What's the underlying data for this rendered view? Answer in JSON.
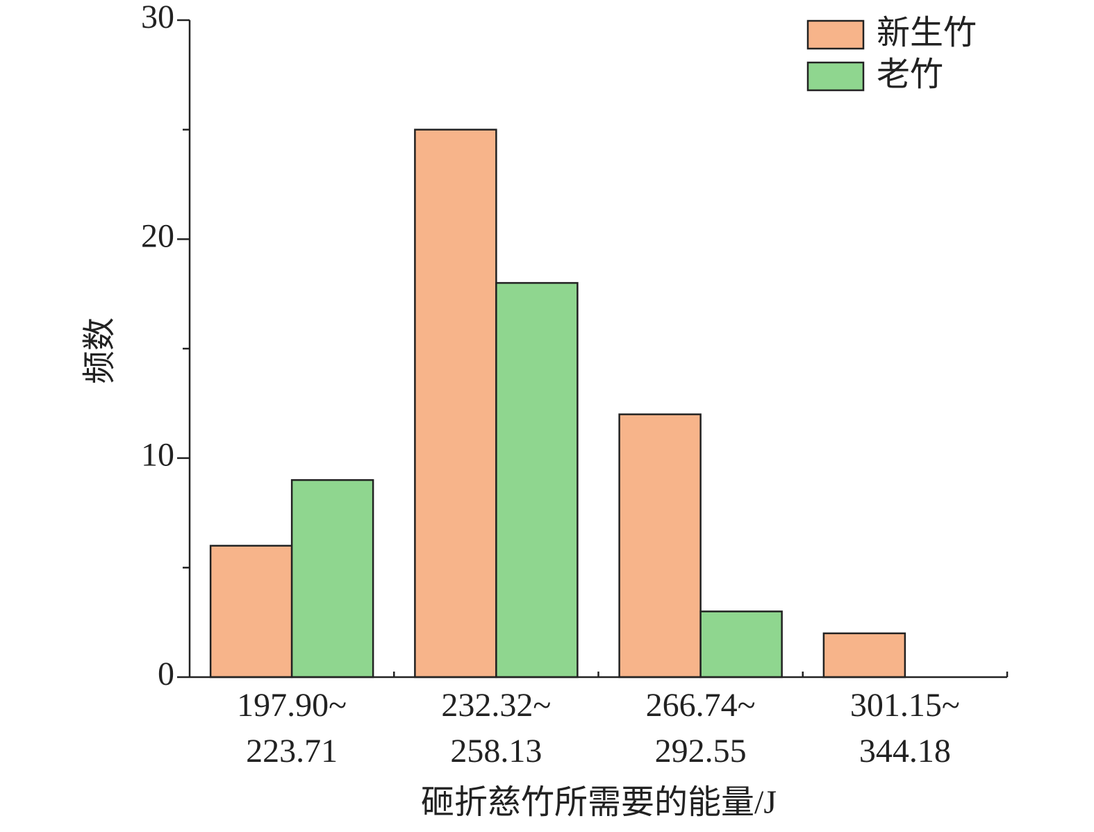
{
  "chart_data": {
    "type": "bar",
    "xlabel": "砸折慈竹所需要的能量/J",
    "ylabel": "频数",
    "categories": [
      [
        "197.90~",
        "223.71"
      ],
      [
        "232.32~",
        "258.13"
      ],
      [
        "266.74~",
        "292.55"
      ],
      [
        "301.15~",
        "344.18"
      ]
    ],
    "series": [
      {
        "name": "新生竹",
        "color": "#f7b48a",
        "values": [
          6,
          25,
          12,
          2
        ]
      },
      {
        "name": "老竹",
        "color": "#8fd68f",
        "values": [
          9,
          18,
          3,
          0
        ]
      }
    ],
    "ylim": [
      0,
      30
    ],
    "yticks": [
      0,
      10,
      20,
      30
    ],
    "yminorticks": [
      5,
      15,
      25
    ],
    "legend": "top-right"
  }
}
